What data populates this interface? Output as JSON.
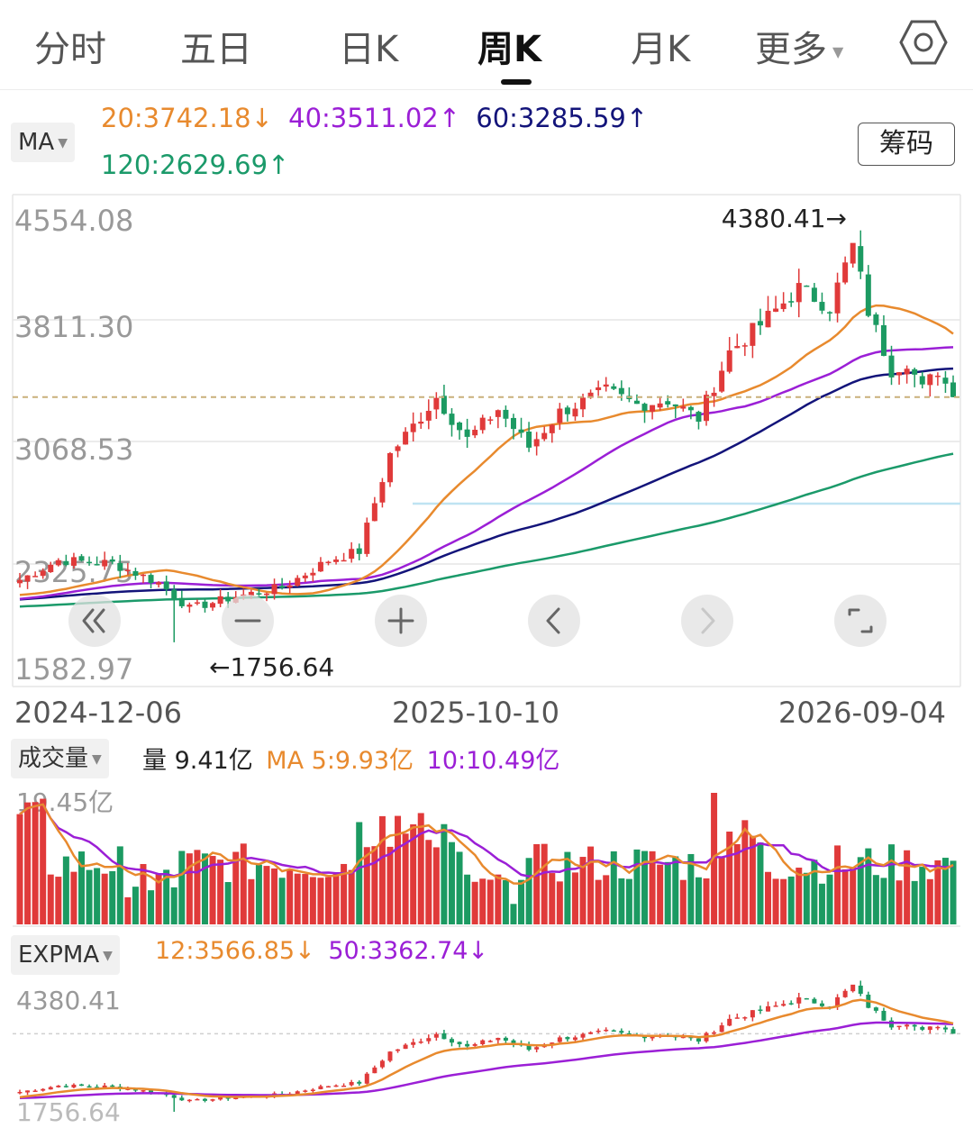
{
  "tabs": [
    {
      "label": "分时"
    },
    {
      "label": "五日"
    },
    {
      "label": "日K"
    },
    {
      "label": "周K",
      "active": true
    },
    {
      "label": "月K"
    },
    {
      "label": "更多"
    }
  ],
  "icons": {
    "settings": "hexagon-gear-icon",
    "more_caret": "caret-down-icon",
    "zoom_out": "double-chevron-left-icon",
    "minus": "minus-icon",
    "plus": "plus-icon",
    "prev": "chevron-left-icon",
    "next": "chevron-right-icon",
    "fullscreen": "fullscreen-icon"
  },
  "ma": {
    "selector": "MA",
    "ma20": "20:3742.18↓",
    "ma40": "40:3511.02↑",
    "ma60": "60:3285.59↑",
    "ma120": "120:2629.69↑",
    "chip_button": "筹码"
  },
  "colors": {
    "up": "#e03a3a",
    "down": "#1c9a62",
    "ma20": "#e88a2e",
    "ma40": "#9b1fd6",
    "ma60": "#13147a",
    "ma120": "#1b9a6a",
    "dash": "#c9b07a"
  },
  "chart_data": [
    {
      "type": "candlestick",
      "panel": "price",
      "y_labels": [
        "4554.08",
        "3811.30",
        "3068.53",
        "2325.75",
        "1582.97"
      ],
      "ylim": [
        1582.97,
        4554.08
      ],
      "x_labels": [
        "2024-12-06",
        "2025-10-10",
        "2026-09-04"
      ],
      "high_annotation": "4380.41→",
      "low_annotation": "←1756.64",
      "last_close": 3380,
      "note_shape": "weekly OHLC series estimated from visual",
      "series": [
        {
          "name": "MA20",
          "key": "ma20"
        },
        {
          "name": "MA40",
          "key": "ma40"
        },
        {
          "name": "MA60",
          "key": "ma60"
        },
        {
          "name": "MA120",
          "key": "ma120"
        }
      ],
      "keypoints": [
        [
          0,
          2170
        ],
        [
          5,
          2300
        ],
        [
          12,
          2280
        ],
        [
          18,
          2150
        ],
        [
          22,
          1980
        ],
        [
          28,
          2060
        ],
        [
          34,
          2120
        ],
        [
          40,
          2300
        ],
        [
          44,
          2360
        ],
        [
          48,
          3000
        ],
        [
          54,
          3380
        ],
        [
          58,
          3100
        ],
        [
          62,
          3300
        ],
        [
          66,
          3050
        ],
        [
          70,
          3280
        ],
        [
          76,
          3420
        ],
        [
          80,
          3330
        ],
        [
          84,
          3360
        ],
        [
          88,
          3240
        ],
        [
          90,
          3460
        ],
        [
          92,
          3680
        ],
        [
          96,
          3860
        ],
        [
          101,
          4100
        ],
        [
          105,
          3980
        ],
        [
          108,
          4380
        ],
        [
          110,
          3950
        ],
        [
          113,
          3560
        ],
        [
          115,
          3620
        ],
        [
          117,
          3430
        ],
        [
          119,
          3560
        ],
        [
          121,
          3380
        ]
      ]
    },
    {
      "type": "bar",
      "panel": "volume",
      "label": "成交量",
      "current": "量 9.41亿",
      "ma5": "MA 5:9.93亿",
      "ma10": "10:10.49亿",
      "ylim": [
        0,
        19.45
      ],
      "y_label": "19.45亿"
    },
    {
      "type": "candlestick",
      "panel": "expma",
      "label": "EXPMA",
      "ema12": "12:3566.85↓",
      "ema50": "50:3362.74↓",
      "y_top": "4380.41",
      "y_bottom": "1756.64"
    }
  ]
}
